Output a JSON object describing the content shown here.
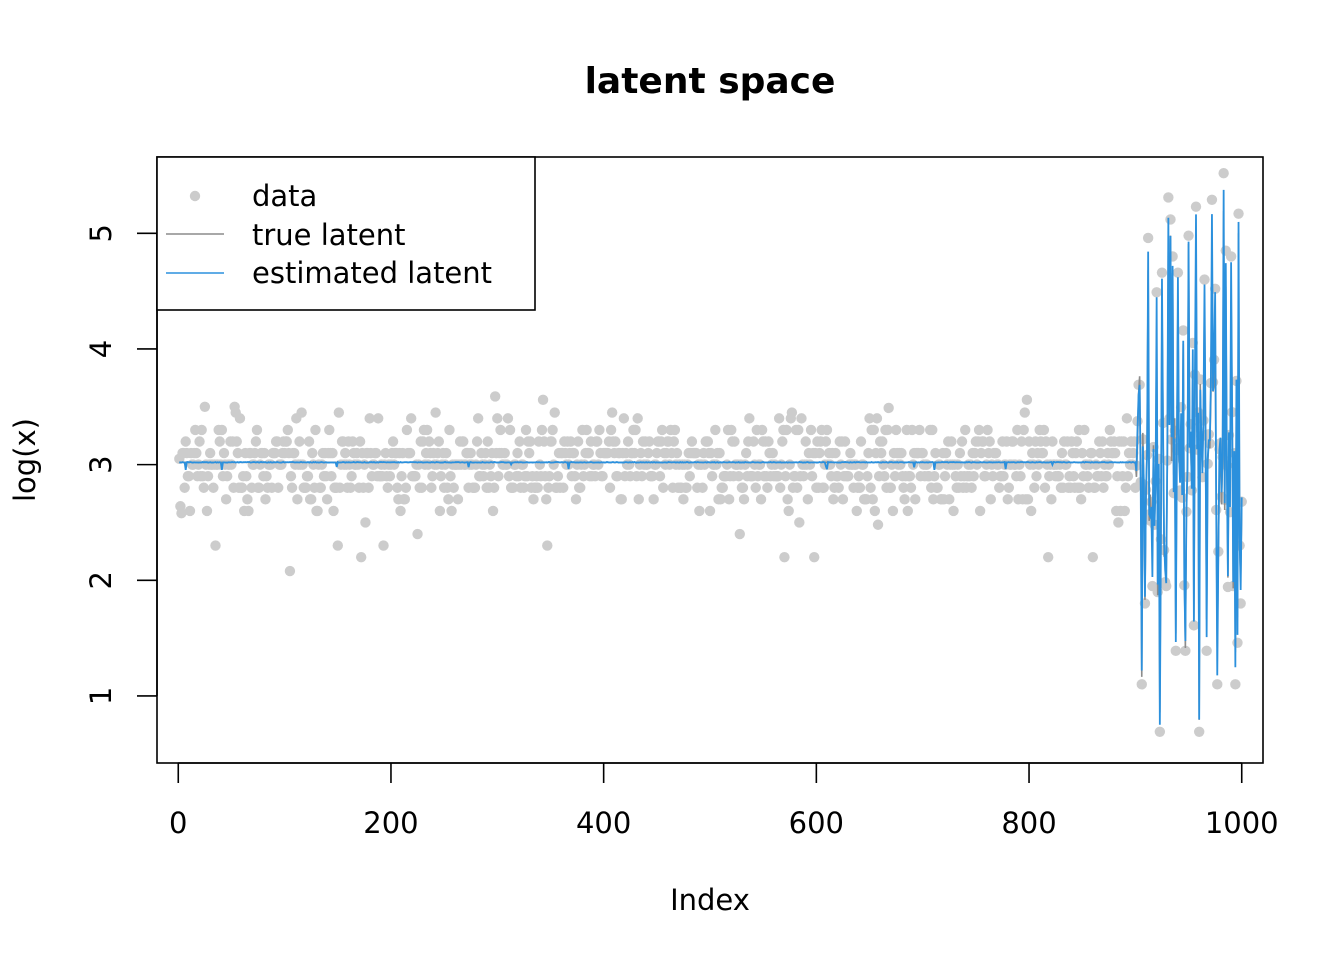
{
  "chart_data": {
    "type": "scatter",
    "title": "latent space",
    "xlabel": "Index",
    "ylabel": "log(x)",
    "xlim": [
      -20,
      1020
    ],
    "ylim": [
      0.42,
      5.66
    ],
    "x_ticks": [
      0,
      200,
      400,
      600,
      800,
      1000
    ],
    "y_ticks": [
      1,
      2,
      3,
      4,
      5
    ],
    "grid": false,
    "legend": {
      "placement": "top-left",
      "entries": [
        {
          "label": "data",
          "kind": "point",
          "color": "#cccccc"
        },
        {
          "label": "true latent",
          "kind": "line",
          "color": "#8c8c8c"
        },
        {
          "label": "estimated latent",
          "kind": "line",
          "color": "#2b90dd"
        }
      ]
    },
    "n_points": 1000,
    "baseline_level": 3.02,
    "colors": {
      "data": "#cccccc",
      "true_latent": "#8c8c8c",
      "estimated_latent": "#2b90dd"
    },
    "series": [
      {
        "name": "data",
        "role": "scatter",
        "summary": "indices 1-900 scattered around 3.0 (approx 2.1-3.6); indices 901-1000 widely spread (approx 0.7-5.5)"
      },
      {
        "name": "true latent",
        "role": "line",
        "summary": "flat at about 3.02 for indices 1-900, then volatile"
      },
      {
        "name": "estimated latent",
        "role": "line",
        "summary": "tracks the true latent; flat near 3.02 then volatile"
      }
    ],
    "highlighted_points": [
      {
        "x": 1,
        "y": 3.05
      },
      {
        "x": 2,
        "y": 2.64
      },
      {
        "x": 3,
        "y": 2.58
      },
      {
        "x": 25,
        "y": 3.5
      },
      {
        "x": 35,
        "y": 2.3
      },
      {
        "x": 53,
        "y": 3.5
      },
      {
        "x": 105,
        "y": 2.08
      },
      {
        "x": 150,
        "y": 2.3
      },
      {
        "x": 172,
        "y": 2.2
      },
      {
        "x": 193,
        "y": 2.3
      },
      {
        "x": 225,
        "y": 2.4
      },
      {
        "x": 298,
        "y": 3.59
      },
      {
        "x": 343,
        "y": 3.56
      },
      {
        "x": 347,
        "y": 2.3
      },
      {
        "x": 528,
        "y": 2.4
      },
      {
        "x": 570,
        "y": 2.2
      },
      {
        "x": 598,
        "y": 2.2
      },
      {
        "x": 658,
        "y": 2.48
      },
      {
        "x": 668,
        "y": 3.49
      },
      {
        "x": 798,
        "y": 3.56
      },
      {
        "x": 818,
        "y": 2.2
      },
      {
        "x": 860,
        "y": 2.2
      },
      {
        "x": 903,
        "y": 3.69
      },
      {
        "x": 906,
        "y": 1.1
      },
      {
        "x": 909,
        "y": 1.8
      },
      {
        "x": 912,
        "y": 4.96
      },
      {
        "x": 916,
        "y": 1.95
      },
      {
        "x": 920,
        "y": 4.49
      },
      {
        "x": 923,
        "y": 0.69
      },
      {
        "x": 925,
        "y": 4.66
      },
      {
        "x": 929,
        "y": 1.95
      },
      {
        "x": 931,
        "y": 5.31
      },
      {
        "x": 933,
        "y": 5.12
      },
      {
        "x": 935,
        "y": 4.8
      },
      {
        "x": 938,
        "y": 1.39
      },
      {
        "x": 940,
        "y": 4.66
      },
      {
        "x": 945,
        "y": 4.16
      },
      {
        "x": 947,
        "y": 1.39
      },
      {
        "x": 950,
        "y": 4.98
      },
      {
        "x": 955,
        "y": 1.61
      },
      {
        "x": 957,
        "y": 5.23
      },
      {
        "x": 960,
        "y": 0.69
      },
      {
        "x": 965,
        "y": 4.6
      },
      {
        "x": 967,
        "y": 1.39
      },
      {
        "x": 972,
        "y": 5.29
      },
      {
        "x": 975,
        "y": 4.52
      },
      {
        "x": 977,
        "y": 1.1
      },
      {
        "x": 983,
        "y": 5.52
      },
      {
        "x": 985,
        "y": 4.85
      },
      {
        "x": 990,
        "y": 4.8
      },
      {
        "x": 992,
        "y": 1.95
      },
      {
        "x": 994,
        "y": 1.1
      },
      {
        "x": 997,
        "y": 5.17
      },
      {
        "x": 998,
        "y": 2.3
      },
      {
        "x": 999,
        "y": 1.8
      }
    ]
  }
}
